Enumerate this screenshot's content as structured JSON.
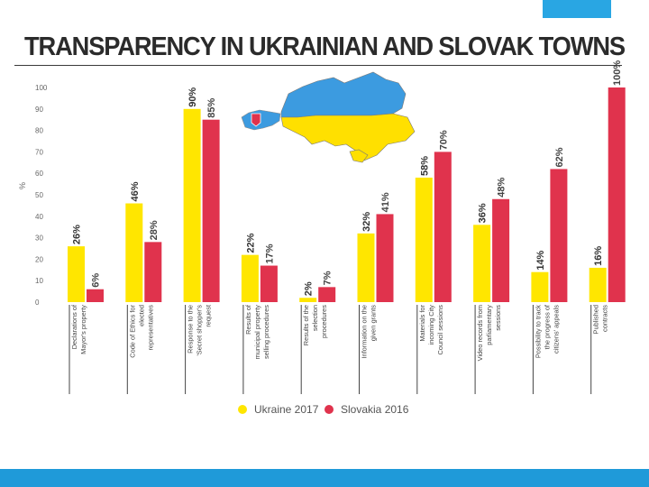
{
  "slide": {
    "title": "TRANSPARENCY IN UKRAINIAN  AND SLOVAK TOWNS"
  },
  "colors": {
    "ukraine": "#ffe600",
    "slovakia": "#e0334d",
    "accent": "#1f9ad9",
    "map_blue": "#3c9be0",
    "map_yellow": "#ffe000"
  },
  "chart_data": {
    "type": "bar",
    "title": "",
    "xlabel": "",
    "ylabel": "%",
    "ylim": [
      0,
      100
    ],
    "yticks": [
      0,
      10,
      20,
      30,
      40,
      50,
      60,
      70,
      80,
      90,
      100
    ],
    "categories": [
      [
        "Declarations of",
        "Mayor's property"
      ],
      [
        "Code of Ethics for",
        "elected",
        "representatives"
      ],
      [
        "Response to the",
        "'Secret shopper's",
        "request"
      ],
      [
        "Results of",
        "municipal property",
        "selling procedures"
      ],
      [
        "Results of the",
        "selection",
        "procedures"
      ],
      [
        "Information on the",
        "given grants"
      ],
      [
        "Materials for",
        "incoming City",
        "Council sessions"
      ],
      [
        "Video records from",
        "parliamentary",
        "sessions"
      ],
      [
        "Possibility to track",
        "the progress of",
        "citizens' appeals"
      ],
      [
        "Published",
        "contracts"
      ]
    ],
    "series": [
      {
        "name": "Ukraine 2017",
        "values": [
          26,
          46,
          90,
          22,
          2,
          32,
          58,
          36,
          14,
          16
        ],
        "labels": [
          "26%",
          "46%",
          "90%",
          "22%",
          "2%",
          "32%",
          "58%",
          "36%",
          "14%",
          "16%"
        ]
      },
      {
        "name": "Slovakia 2016",
        "values": [
          6,
          28,
          85,
          17,
          7,
          41,
          70,
          48,
          62,
          100
        ],
        "labels": [
          "6%",
          "28%",
          "85%",
          "17%",
          "7%",
          "41%",
          "70%",
          "48%",
          "62%",
          "100%"
        ]
      }
    ],
    "legend": {
      "position": "bottom"
    },
    "grid": false
  }
}
